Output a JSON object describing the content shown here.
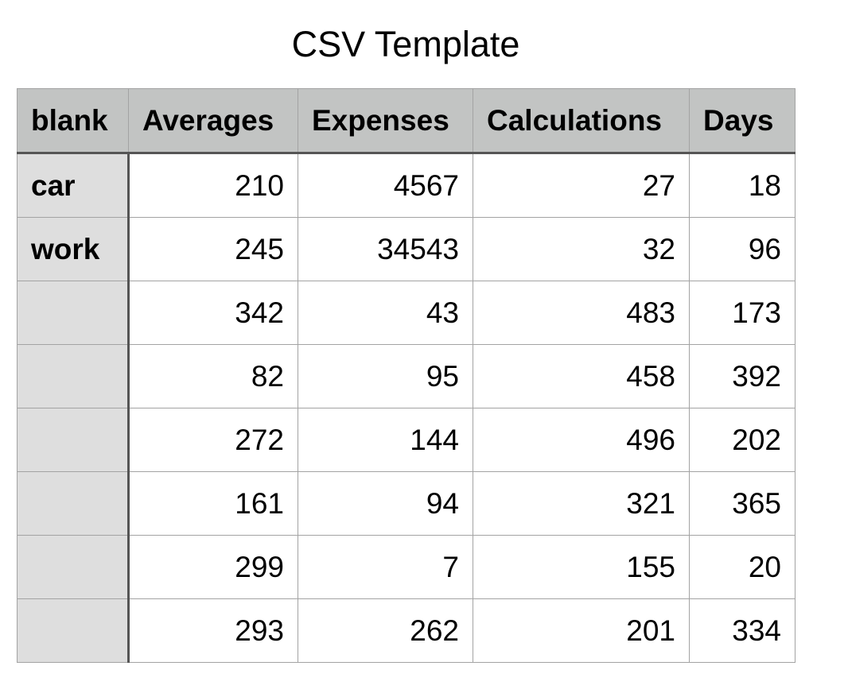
{
  "title": "CSV Template",
  "table": {
    "headers": [
      "blank",
      "Averages",
      "Expenses",
      "Calculations",
      "Days"
    ],
    "rows": [
      {
        "label": "car",
        "values": [
          "210",
          "4567",
          "27",
          "18"
        ]
      },
      {
        "label": "work",
        "values": [
          "245",
          "34543",
          "32",
          "96"
        ]
      },
      {
        "label": "",
        "values": [
          "342",
          "43",
          "483",
          "173"
        ]
      },
      {
        "label": "",
        "values": [
          "82",
          "95",
          "458",
          "392"
        ]
      },
      {
        "label": "",
        "values": [
          "272",
          "144",
          "496",
          "202"
        ]
      },
      {
        "label": "",
        "values": [
          "161",
          "94",
          "321",
          "365"
        ]
      },
      {
        "label": "",
        "values": [
          "299",
          "7",
          "155",
          "20"
        ]
      },
      {
        "label": "",
        "values": [
          "293",
          "262",
          "201",
          "334"
        ]
      }
    ]
  }
}
